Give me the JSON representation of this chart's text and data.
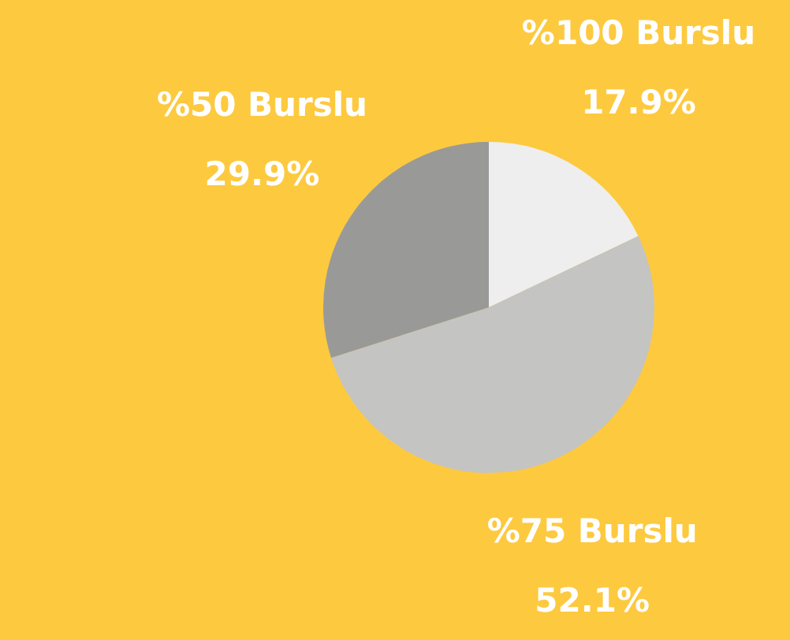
{
  "chart_data": {
    "type": "pie",
    "categories": [
      "%100 Burslu",
      "%75 Burslu",
      "%50 Burslu"
    ],
    "values": [
      17.9,
      52.1,
      29.9
    ],
    "colors": [
      "#eeeeee",
      "#c4c4c2",
      "#999a98"
    ],
    "value_labels": [
      "17.9%",
      "52.1%",
      "29.9%"
    ],
    "legend": false
  }
}
